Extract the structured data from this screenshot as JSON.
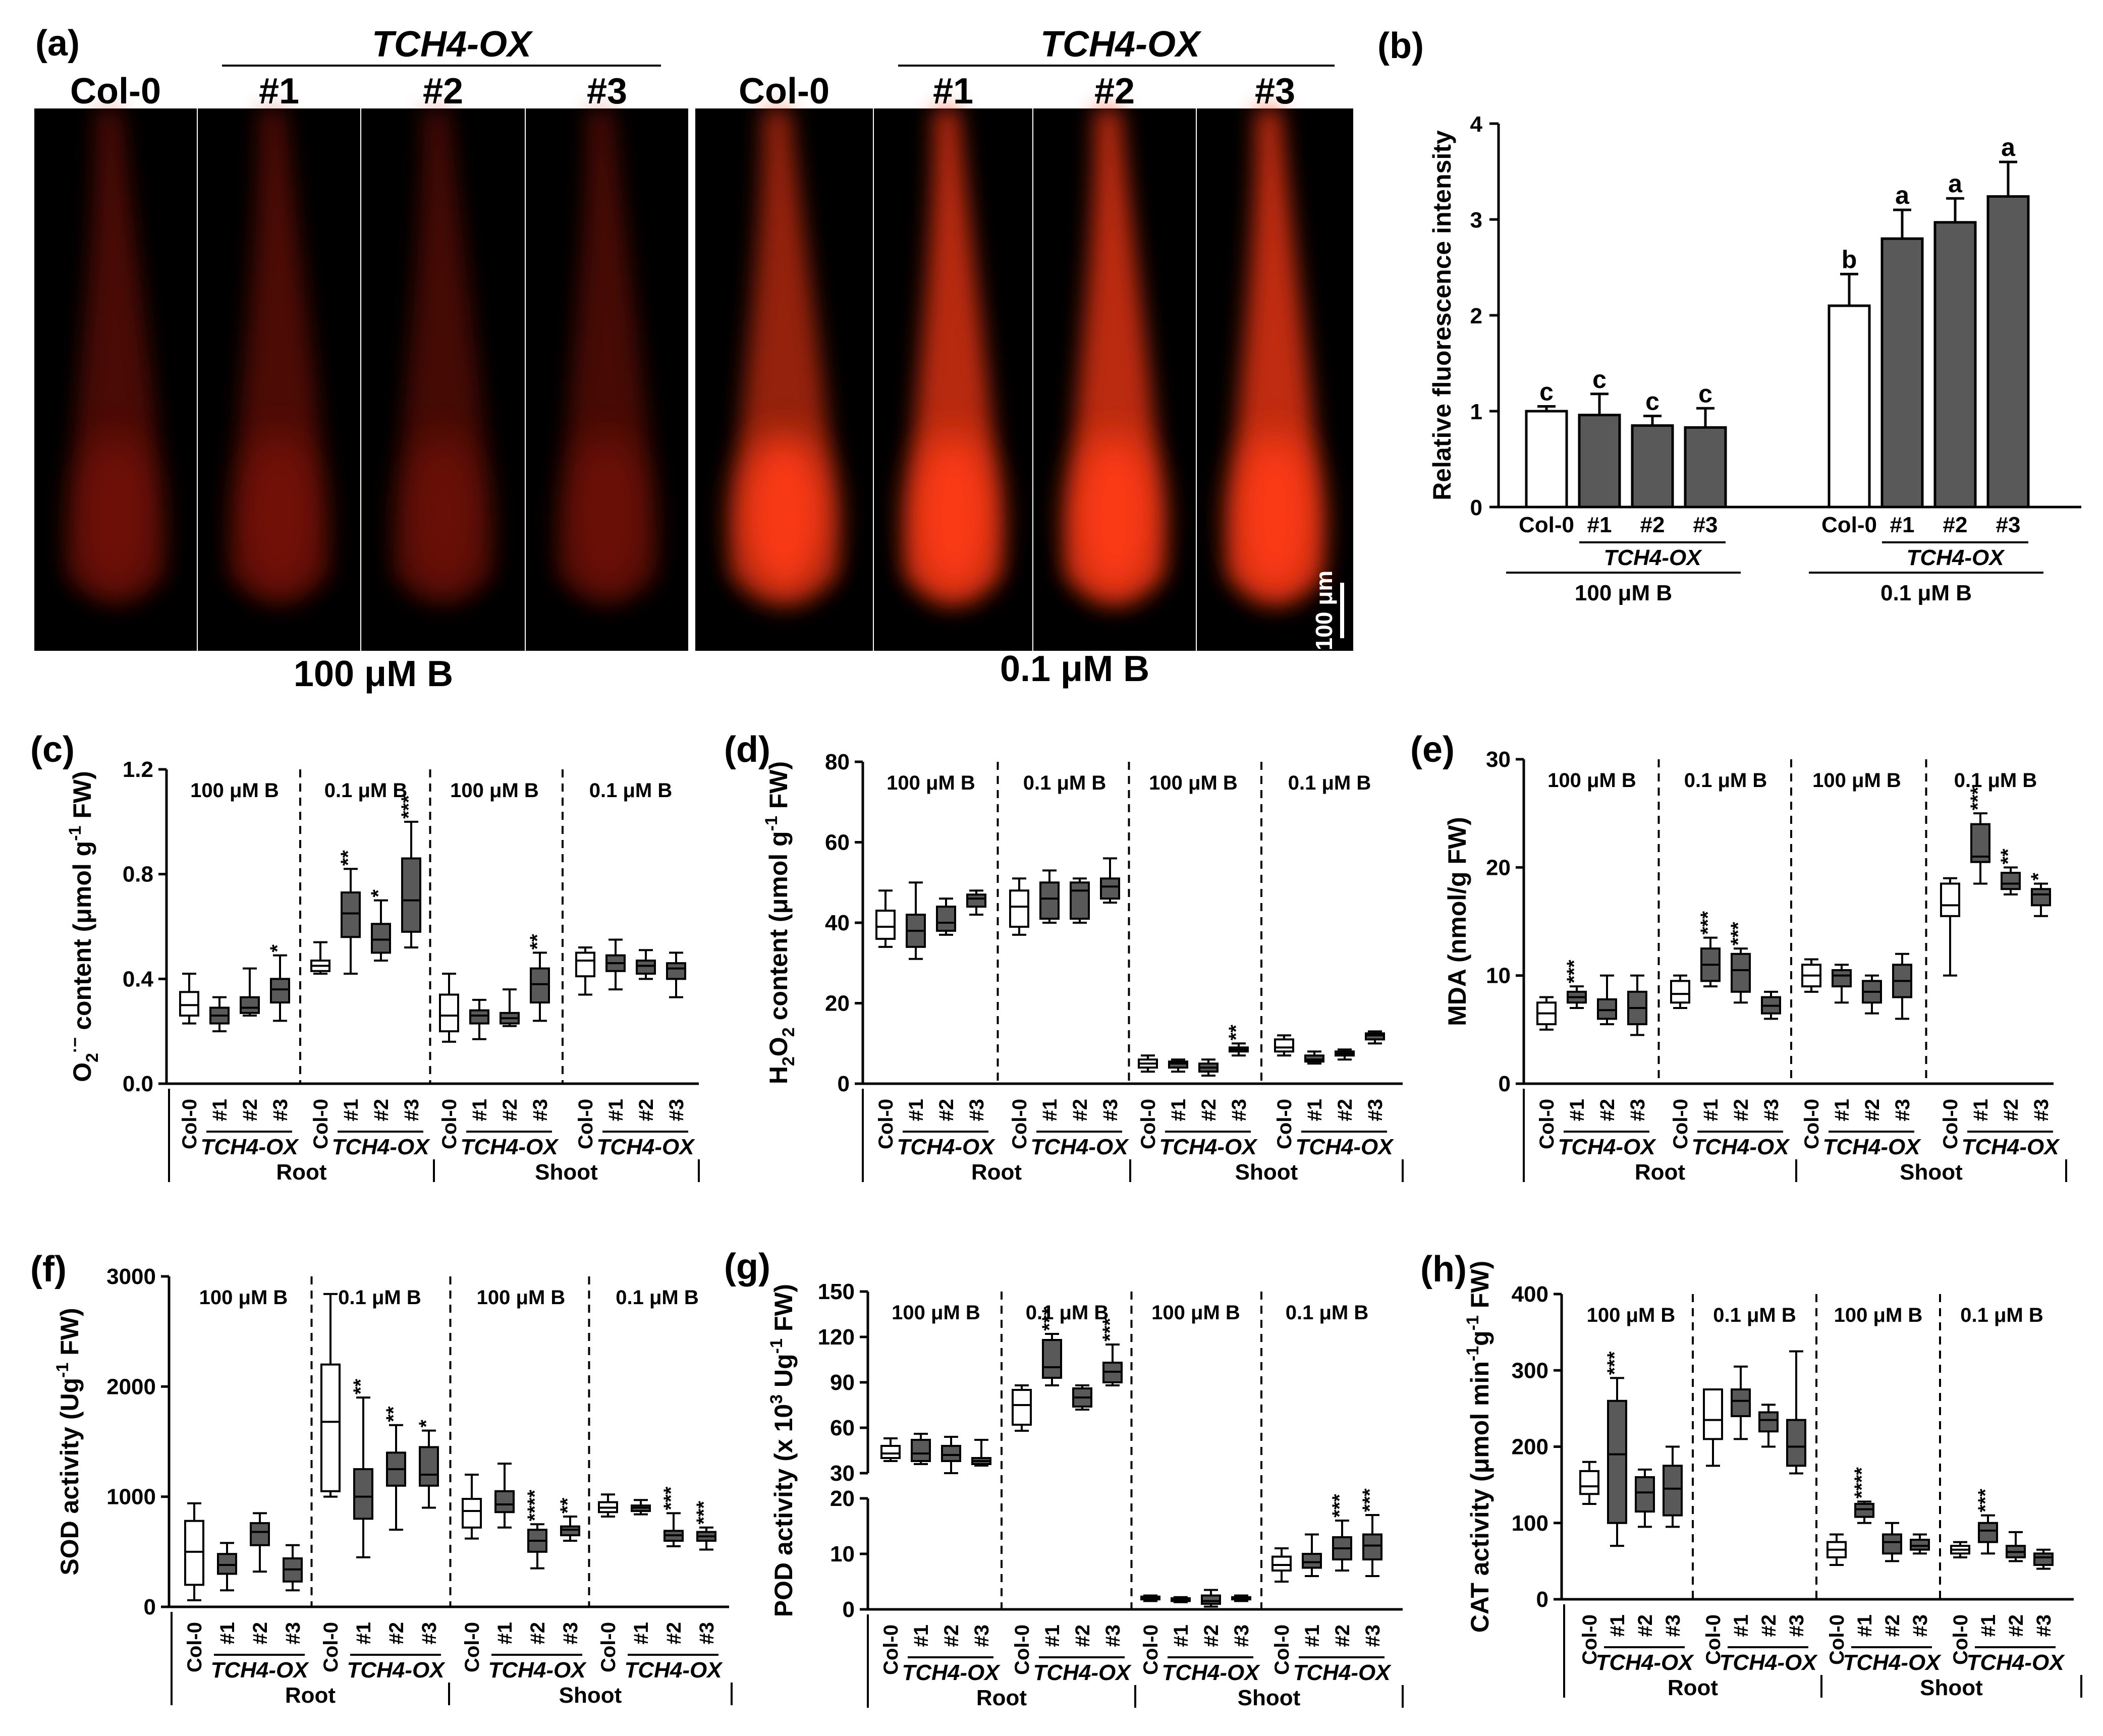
{
  "colors": {
    "white_box": "#ffffff",
    "gray_box": "#595959",
    "fluor_bright": "#ff3b12",
    "fluor_dark": "#c01c0a"
  },
  "panel_a": {
    "label": "(a)",
    "line_label": "TCH4-OX",
    "cols_left": [
      "Col-0",
      "#1",
      "#2",
      "#3"
    ],
    "cols_right": [
      "Col-0",
      "#1",
      "#2",
      "#3"
    ],
    "cond_left": "100 μM B",
    "cond_right": "0.1 μM B",
    "scale_bar": "100 μm",
    "fluorescence": [
      0.35,
      0.38,
      0.3,
      0.32,
      0.7,
      0.95,
      0.97,
      1.0
    ]
  },
  "chart_data": [
    {
      "id": "b",
      "label": "(b)",
      "type": "bar",
      "ylabel": "Relative fluorescence intensity",
      "ylim": [
        0,
        4
      ],
      "yticks": [
        "0",
        "1",
        "2",
        "3",
        "4"
      ],
      "groups": [
        {
          "condition": "100 μM B",
          "categories": [
            "Col-0",
            "#1",
            "#2",
            "#3"
          ],
          "values": [
            1.0,
            0.96,
            0.85,
            0.83
          ],
          "errors": [
            0.05,
            0.22,
            0.1,
            0.2
          ],
          "letters": [
            "c",
            "c",
            "c",
            "c"
          ]
        },
        {
          "condition": "0.1 μM B",
          "categories": [
            "Col-0",
            "#1",
            "#2",
            "#3"
          ],
          "values": [
            2.1,
            2.8,
            2.97,
            3.24
          ],
          "errors": [
            0.33,
            0.3,
            0.25,
            0.36
          ],
          "letters": [
            "b",
            "a",
            "a",
            "a"
          ]
        }
      ],
      "line_label": "TCH4-OX"
    },
    {
      "id": "c",
      "label": "(c)",
      "type": "boxplot",
      "ylabel_parts": [
        "O",
        "2",
        "·−",
        " content (μmol g",
        "-1",
        " FW)"
      ],
      "ylim": [
        0,
        1.2
      ],
      "yticks": [
        "0.0",
        "0.4",
        "0.8",
        "1.2"
      ],
      "group_labels": [
        "100 μM B",
        "0.1 μM B",
        "100 μM B",
        "0.1 μM B"
      ],
      "tissues": [
        "Root",
        "Shoot"
      ],
      "categories": [
        "Col-0",
        "#1",
        "#2",
        "#3"
      ],
      "line_label": "TCH4-OX",
      "boxes": [
        [
          0.23,
          0.26,
          0.3,
          0.35,
          0.42
        ],
        [
          0.2,
          0.23,
          0.26,
          0.29,
          0.33
        ],
        [
          0.26,
          0.27,
          0.29,
          0.33,
          0.44
        ],
        [
          0.24,
          0.31,
          0.36,
          0.4,
          0.49
        ],
        [
          0.42,
          0.43,
          0.45,
          0.47,
          0.54
        ],
        [
          0.42,
          0.56,
          0.65,
          0.73,
          0.82
        ],
        [
          0.47,
          0.5,
          0.55,
          0.61,
          0.7
        ],
        [
          0.52,
          0.58,
          0.7,
          0.86,
          1.0
        ],
        [
          0.16,
          0.2,
          0.26,
          0.34,
          0.42
        ],
        [
          0.17,
          0.23,
          0.26,
          0.28,
          0.32
        ],
        [
          0.22,
          0.23,
          0.25,
          0.27,
          0.36
        ],
        [
          0.24,
          0.31,
          0.38,
          0.44,
          0.5
        ],
        [
          0.34,
          0.41,
          0.47,
          0.5,
          0.52
        ],
        [
          0.36,
          0.43,
          0.46,
          0.49,
          0.55
        ],
        [
          0.4,
          0.42,
          0.45,
          0.47,
          0.51
        ],
        [
          0.33,
          0.4,
          0.44,
          0.46,
          0.5
        ]
      ],
      "stars": [
        "",
        "",
        "",
        "*",
        "",
        "**",
        "*",
        "***",
        "",
        "",
        "",
        "**",
        "",
        "",
        "",
        ""
      ]
    },
    {
      "id": "d",
      "label": "(d)",
      "type": "boxplot",
      "ylabel_parts": [
        "H",
        "2",
        "O",
        "2",
        "  content (μmol g",
        "-1",
        " FW)"
      ],
      "ylim": [
        0,
        80
      ],
      "yticks": [
        "0",
        "20",
        "40",
        "60",
        "80"
      ],
      "group_labels": [
        "100 μM B",
        "0.1 μM B",
        "100 μM B",
        "0.1 μM B"
      ],
      "tissues": [
        "Root",
        "Shoot"
      ],
      "categories": [
        "Col-0",
        "#1",
        "#2",
        "#3"
      ],
      "line_label": "TCH4-OX",
      "boxes": [
        [
          34,
          36,
          39,
          43,
          48
        ],
        [
          31,
          34,
          38,
          42,
          50
        ],
        [
          37,
          38,
          40,
          44,
          46
        ],
        [
          42,
          44,
          46,
          47,
          48
        ],
        [
          37,
          39,
          44,
          48,
          51
        ],
        [
          40,
          41,
          46,
          50,
          53
        ],
        [
          40,
          41,
          48,
          50,
          51
        ],
        [
          45,
          46,
          49,
          51,
          56
        ],
        [
          3,
          4,
          5,
          6,
          7
        ],
        [
          3,
          4,
          5,
          5.5,
          6
        ],
        [
          2,
          3,
          4,
          5,
          6
        ],
        [
          7,
          8,
          8.5,
          9,
          10
        ],
        [
          7,
          8,
          9,
          11,
          12
        ],
        [
          5,
          5.5,
          6,
          7,
          8
        ],
        [
          6,
          7,
          7.5,
          8,
          8.5
        ],
        [
          10,
          11,
          12,
          12.5,
          13
        ]
      ],
      "stars": [
        "",
        "",
        "",
        "",
        "",
        "",
        "",
        "",
        "",
        "",
        "",
        "**",
        "",
        "",
        "",
        ""
      ]
    },
    {
      "id": "e",
      "label": "(e)",
      "type": "boxplot",
      "ylabel_parts": [
        "MDA (nmol/g FW)"
      ],
      "ylim": [
        0,
        30
      ],
      "yticks": [
        "0",
        "10",
        "20",
        "30"
      ],
      "group_labels": [
        "100 μM B",
        "0.1 μM B",
        "100 μM B",
        "0.1 μM B"
      ],
      "tissues": [
        "Root",
        "Shoot"
      ],
      "categories": [
        "Col-0",
        "#1",
        "#2",
        "#3"
      ],
      "line_label": "TCH4-OX",
      "boxes": [
        [
          5,
          5.5,
          6.5,
          7.5,
          8
        ],
        [
          7,
          7.5,
          8,
          8.5,
          9
        ],
        [
          5.5,
          6,
          6.8,
          7.8,
          10
        ],
        [
          4.5,
          5.5,
          7,
          8.5,
          10
        ],
        [
          7,
          7.5,
          8.3,
          9.5,
          10
        ],
        [
          9,
          9.5,
          11,
          12.5,
          13.5
        ],
        [
          7.5,
          8.5,
          10.5,
          12,
          12.5
        ],
        [
          6,
          6.5,
          7.2,
          8,
          8.5
        ],
        [
          8.5,
          9,
          10,
          11,
          11.5
        ],
        [
          7.5,
          9,
          10,
          10.5,
          11
        ],
        [
          6.5,
          7.5,
          8.5,
          9.5,
          10
        ],
        [
          6,
          8,
          9.5,
          11,
          12
        ],
        [
          10,
          15.5,
          16.5,
          18.5,
          19
        ],
        [
          18.5,
          20.5,
          21,
          24,
          25
        ],
        [
          17.5,
          18,
          18.5,
          19.5,
          20
        ],
        [
          15.5,
          16.5,
          17.5,
          18,
          18.5
        ]
      ],
      "stars": [
        "",
        "***",
        "",
        "",
        "",
        "***",
        "***",
        "",
        "",
        "",
        "",
        "",
        "",
        "***",
        "**",
        "*"
      ]
    },
    {
      "id": "f",
      "label": "(f)",
      "type": "boxplot",
      "ylabel_parts": [
        "SOD activity (Ug",
        "-1",
        " FW)"
      ],
      "ylim": [
        0,
        3000
      ],
      "yticks": [
        "0",
        "1000",
        "2000",
        "3000"
      ],
      "group_labels": [
        "100 μM B",
        "0.1 μM B",
        "100 μM B",
        "0.1 μM B"
      ],
      "tissues": [
        "Root",
        "Shoot"
      ],
      "categories": [
        "Col-0",
        "#1",
        "#2",
        "#3"
      ],
      "line_label": "TCH4-OX",
      "boxes": [
        [
          60,
          200,
          500,
          780,
          940
        ],
        [
          150,
          300,
          380,
          480,
          580
        ],
        [
          320,
          560,
          680,
          760,
          850
        ],
        [
          150,
          230,
          340,
          440,
          560
        ],
        [
          1000,
          1050,
          1680,
          2200,
          2840
        ],
        [
          450,
          800,
          1000,
          1250,
          1900
        ],
        [
          700,
          1100,
          1250,
          1400,
          1650
        ],
        [
          900,
          1100,
          1200,
          1450,
          1600
        ],
        [
          620,
          720,
          870,
          980,
          1200
        ],
        [
          720,
          860,
          930,
          1050,
          1300
        ],
        [
          350,
          500,
          600,
          700,
          750
        ],
        [
          600,
          650,
          700,
          730,
          820
        ],
        [
          820,
          860,
          900,
          950,
          1020
        ],
        [
          840,
          870,
          900,
          920,
          970
        ],
        [
          550,
          600,
          650,
          690,
          850
        ],
        [
          520,
          600,
          640,
          680,
          720
        ]
      ],
      "stars": [
        "",
        "",
        "",
        "",
        "",
        "**",
        "**",
        "*",
        "",
        "",
        "****",
        "**",
        "",
        "",
        "***",
        "***"
      ]
    },
    {
      "id": "g",
      "label": "(g)",
      "type": "boxplot",
      "ylabel_parts": [
        "POD activity (x 10",
        "3",
        " Ug",
        "-1",
        " FW)"
      ],
      "yticks": [
        "0",
        "10",
        "20",
        "30",
        "60",
        "90",
        "120",
        "150"
      ],
      "group_labels": [
        "100 μM B",
        "0.1 μM B",
        "100 μM B",
        "0.1 μM B"
      ],
      "tissues": [
        "Root",
        "Shoot"
      ],
      "categories": [
        "Col-0",
        "#1",
        "#2",
        "#3"
      ],
      "line_label": "TCH4-OX",
      "boxes": [
        [
          38,
          40,
          43,
          48,
          53
        ],
        [
          36,
          38,
          43,
          52,
          56
        ],
        [
          30,
          38,
          42,
          48,
          54
        ],
        [
          35,
          36,
          38,
          40,
          52
        ],
        [
          58,
          62,
          75,
          85,
          88
        ],
        [
          88,
          93,
          100,
          118,
          122
        ],
        [
          72,
          74,
          80,
          86,
          88
        ],
        [
          88,
          90,
          97,
          103,
          115
        ],
        [
          1.5,
          1.8,
          2,
          2.3,
          2.5
        ],
        [
          1.3,
          1.5,
          1.8,
          2,
          2.2
        ],
        [
          0.5,
          1,
          1.5,
          2.5,
          3.5
        ],
        [
          1.5,
          1.8,
          2,
          2.2,
          2.5
        ],
        [
          5,
          7,
          8,
          9.5,
          11
        ],
        [
          6,
          7.5,
          8.5,
          10,
          13.5
        ],
        [
          7,
          9,
          11,
          13,
          16
        ],
        [
          6,
          9,
          11.5,
          13.5,
          17
        ]
      ],
      "stars": [
        "",
        "",
        "",
        "",
        "",
        "***",
        "",
        "***",
        "",
        "",
        "",
        "",
        "",
        "",
        "***",
        "***"
      ]
    },
    {
      "id": "h",
      "label": "(h)",
      "type": "boxplot",
      "ylabel_parts": [
        "CAT activity (μmol min",
        "-1",
        "g",
        "-1",
        " FW)"
      ],
      "ylim": [
        0,
        400
      ],
      "yticks": [
        "0",
        "100",
        "200",
        "300",
        "400"
      ],
      "group_labels": [
        "100 μM B",
        "0.1 μM B",
        "100 μM B",
        "0.1 μM B"
      ],
      "tissues": [
        "Root",
        "Shoot"
      ],
      "categories": [
        "Col-0",
        "#1",
        "#2",
        "#3"
      ],
      "line_label": "TCH4-OX",
      "boxes": [
        [
          125,
          138,
          148,
          168,
          180
        ],
        [
          70,
          100,
          190,
          260,
          290
        ],
        [
          95,
          115,
          140,
          160,
          170
        ],
        [
          95,
          110,
          145,
          175,
          200
        ],
        [
          175,
          210,
          235,
          275,
          275
        ],
        [
          210,
          240,
          260,
          275,
          305
        ],
        [
          200,
          220,
          235,
          245,
          255
        ],
        [
          165,
          175,
          200,
          235,
          325
        ],
        [
          45,
          55,
          65,
          75,
          85
        ],
        [
          100,
          108,
          118,
          125,
          128
        ],
        [
          50,
          60,
          75,
          85,
          100
        ],
        [
          60,
          65,
          70,
          78,
          85
        ],
        [
          55,
          60,
          65,
          70,
          75
        ],
        [
          60,
          75,
          90,
          100,
          110
        ],
        [
          50,
          55,
          62,
          70,
          88
        ],
        [
          40,
          45,
          55,
          60,
          65
        ]
      ],
      "stars": [
        "",
        "***",
        "",
        "",
        "",
        "",
        "",
        "",
        "",
        "****",
        "",
        "",
        "",
        "***",
        "",
        ""
      ]
    }
  ]
}
